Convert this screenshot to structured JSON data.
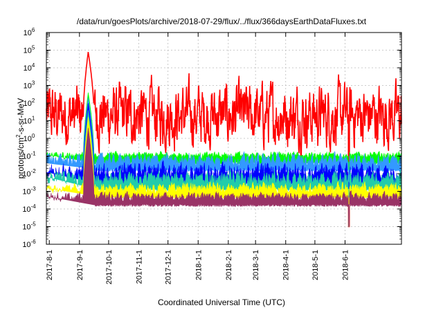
{
  "chart_data": {
    "type": "area",
    "title": "/data/run/goesPlots/archive/2018-07-29/flux/../flux/366daysEarthDataFluxes.txt",
    "xlabel": "Coordinated Universal Time (UTC)",
    "ylabel": {
      "base": "protons/cm",
      "sup": "2",
      "rest": "-s-sr-MeV"
    },
    "yscale": "log",
    "ylim_exp": [
      -6,
      6
    ],
    "y_tick_labels": [
      {
        "base": "10",
        "exp": "-6"
      },
      {
        "base": "10",
        "exp": "-5"
      },
      {
        "base": "10",
        "exp": "-4"
      },
      {
        "base": "10",
        "exp": "-3"
      },
      {
        "base": "10",
        "exp": "-2"
      },
      {
        "base": "10",
        "exp": "-1"
      },
      {
        "base": "10",
        "exp": "0"
      },
      {
        "base": "10",
        "exp": "1"
      },
      {
        "base": "10",
        "exp": "2"
      },
      {
        "base": "10",
        "exp": "3"
      },
      {
        "base": "10",
        "exp": "4"
      },
      {
        "base": "10",
        "exp": "5"
      },
      {
        "base": "10",
        "exp": "6"
      }
    ],
    "xlim": [
      "2017-07-29",
      "2018-07-29"
    ],
    "x_ticks": [
      "2017-8-1",
      "2017-9-1",
      "2017-10-1",
      "2017-11-1",
      "2017-12-1",
      "2018-1-1",
      "2018-2-1",
      "2018-3-1",
      "2018-4-1",
      "2018-5-1",
      "2018-6-1"
    ],
    "grid": true,
    "series": [
      {
        "color": "#ff0000",
        "base_log": 1.3,
        "noise": 1.15,
        "event_log": 4.9
      },
      {
        "color": "#00ff00",
        "base_log": -0.95,
        "noise": 0.12,
        "event_log": 2.6
      },
      {
        "color": "#3399ff",
        "base_log": -1.2,
        "noise": 0.22,
        "event_log": 2.3
      },
      {
        "color": "#0000ff",
        "base_log": -1.85,
        "noise": 0.28,
        "event_log": 2.0
      },
      {
        "color": "#22ccaa",
        "base_log": -2.25,
        "noise": 0.25,
        "event_log": 1.6
      },
      {
        "color": "#ffff00",
        "base_log": -2.8,
        "noise": 0.18,
        "event_log": 1.2
      },
      {
        "color": "#993366",
        "base_log": -3.3,
        "noise": 0.15,
        "event_log": 0.6
      }
    ],
    "event": {
      "start": "2017-09-05",
      "peak": "2017-09-10",
      "end": "2017-09-16"
    },
    "dropout": "2018-06-05"
  }
}
